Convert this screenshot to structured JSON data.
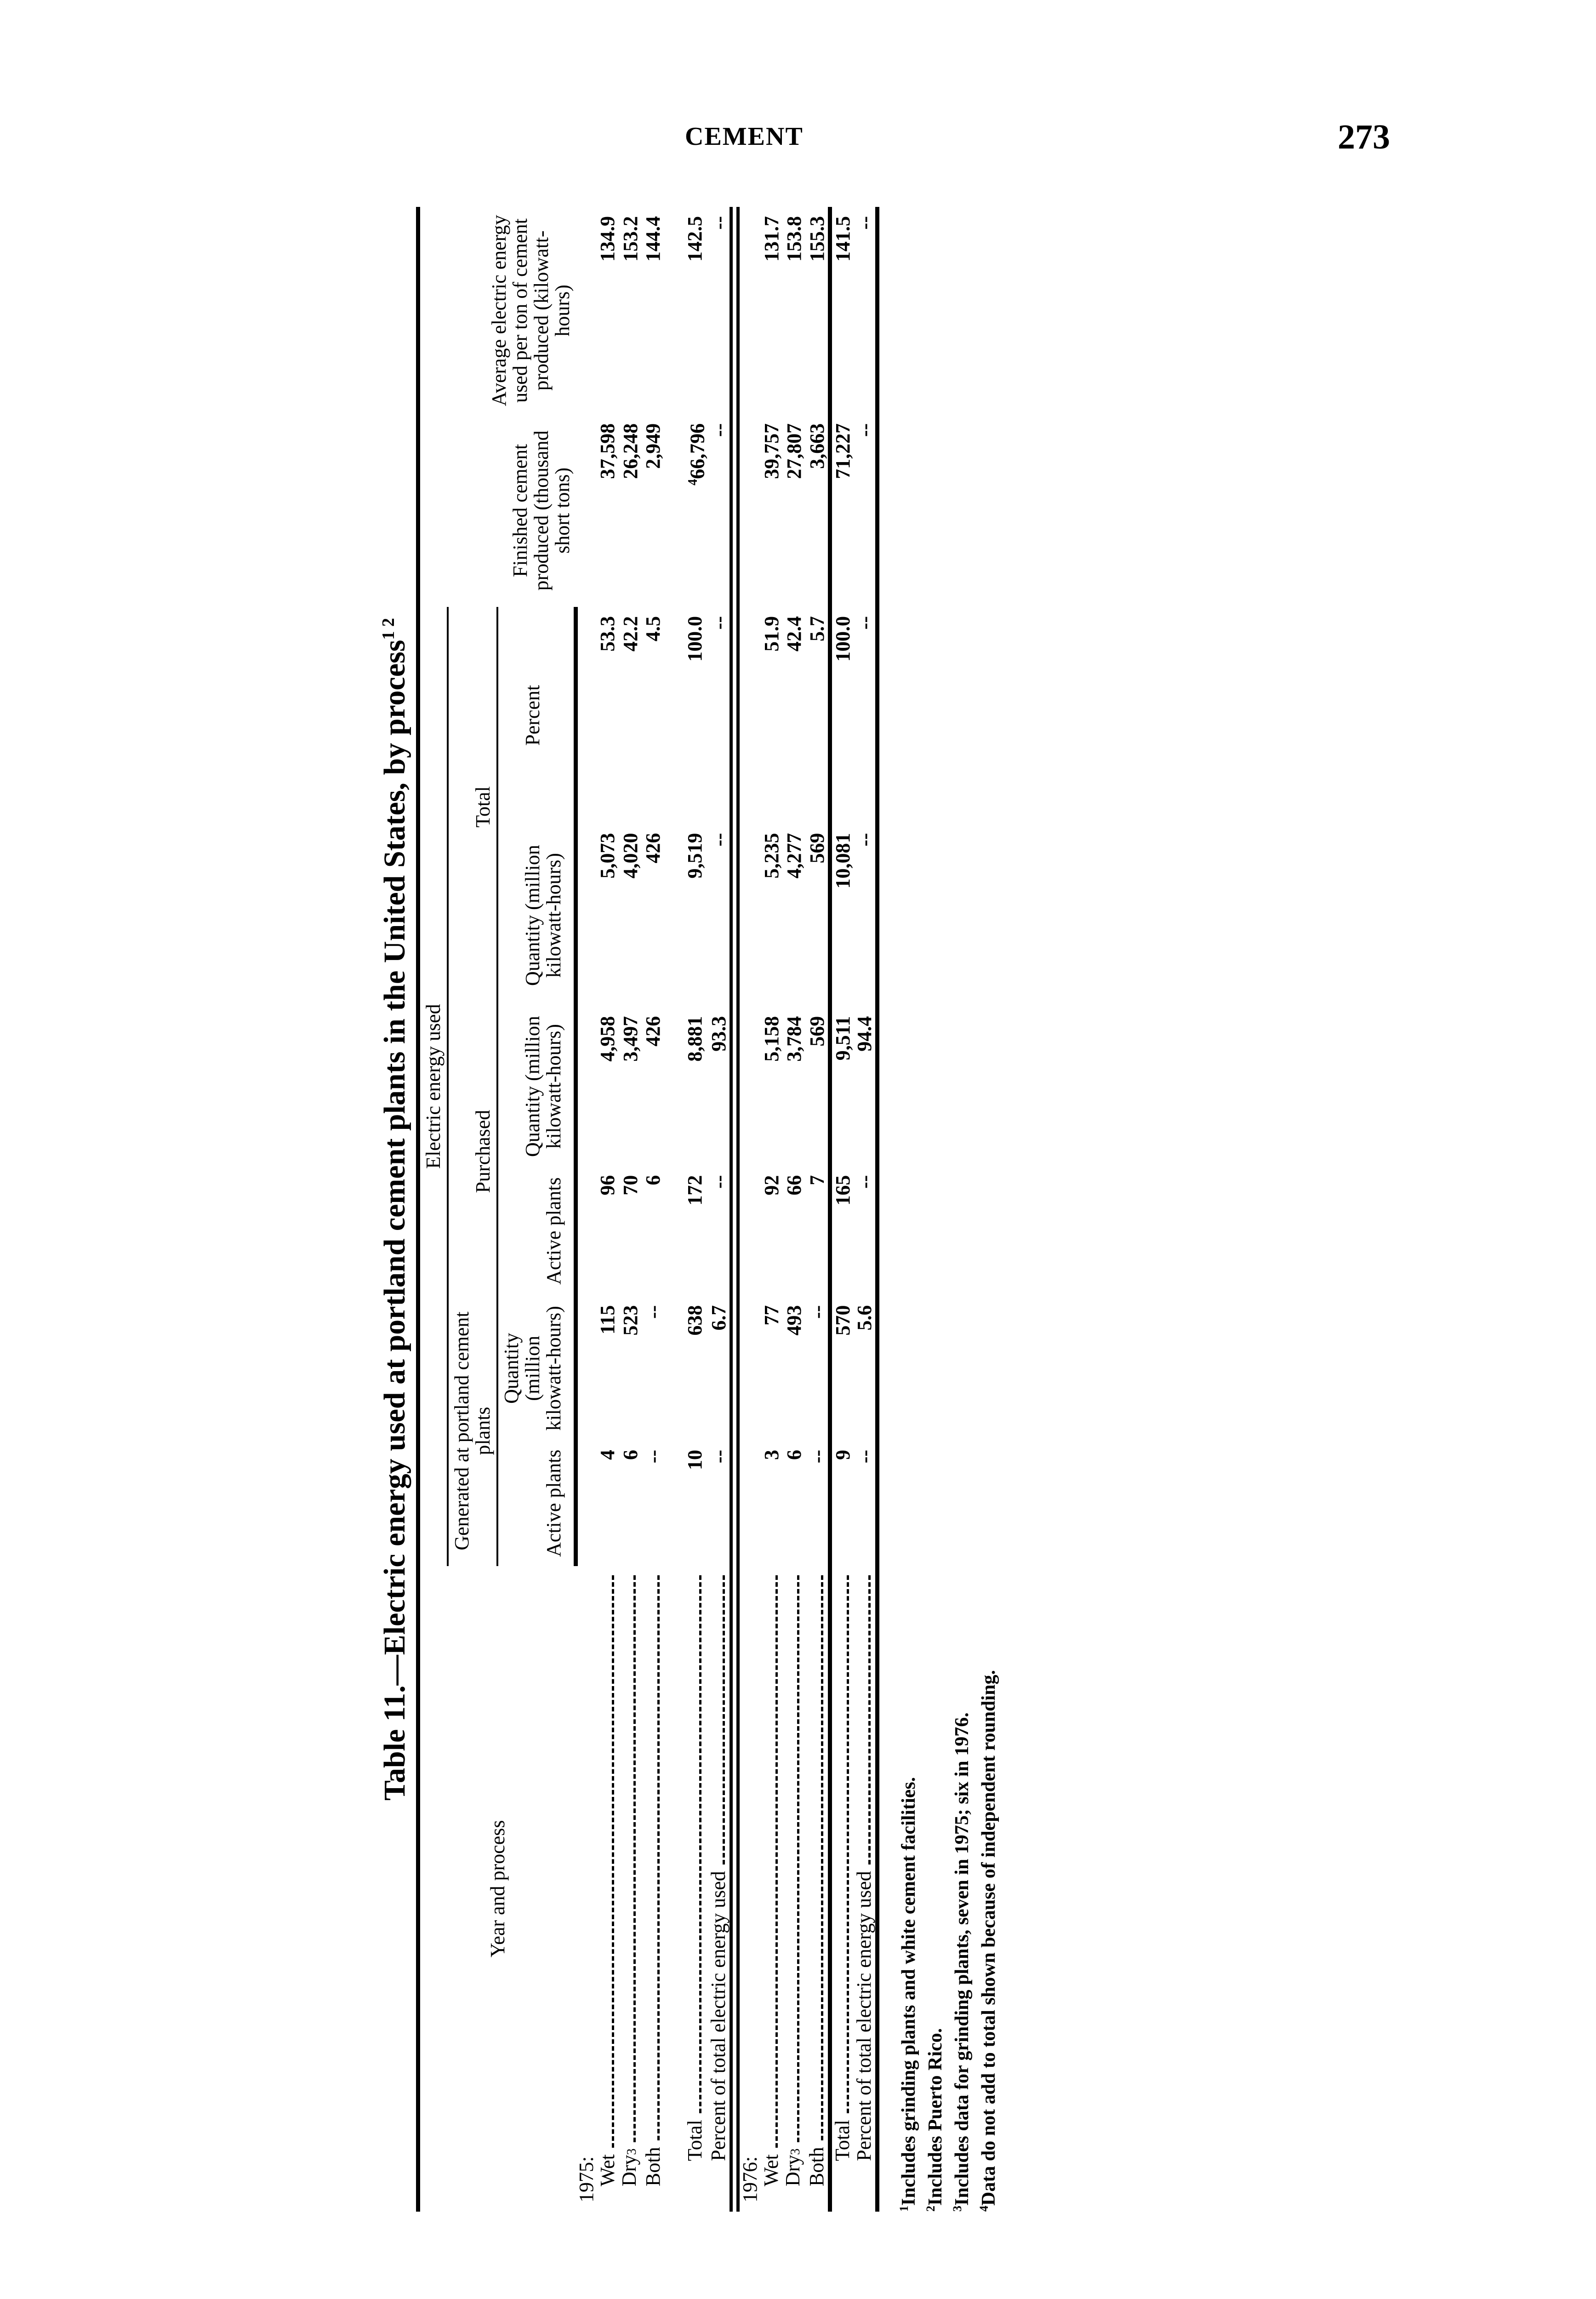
{
  "header": {
    "running_head": "CEMENT",
    "page_number": "273"
  },
  "table": {
    "title": "Table 11.—Electric energy used at portland cement plants in the United States, by process",
    "title_refs": "1 2",
    "headers": {
      "stub": "Year and process",
      "electric": "Electric energy used",
      "generated": "Generated at portland cement plants",
      "purchased": "Purchased",
      "total": "Total",
      "active_plants": "Active plants",
      "quantity": "Quantity (million kilowatt-hours)",
      "percent": "Percent",
      "finished": "Finished cement produced (thousand short tons)",
      "average": "Average electric energy used per ton of cement produced (kilowatt-hours)"
    },
    "sections": [
      {
        "year": "1975:",
        "rows": [
          {
            "label": "Wet",
            "ref": "",
            "v": [
              "4",
              "115",
              "96",
              "4,958",
              "5,073",
              "53.3",
              "37,598",
              "134.9"
            ]
          },
          {
            "label": "Dry",
            "ref": "3",
            "v": [
              "6",
              "523",
              "70",
              "3,497",
              "4,020",
              "42.2",
              "26,248",
              "153.2"
            ]
          },
          {
            "label": "Both",
            "ref": "",
            "v": [
              "--",
              "--",
              "6",
              "426",
              "426",
              "4.5",
              "2,949",
              "144.4"
            ]
          }
        ],
        "total": {
          "label": "Total",
          "v": [
            "10",
            "638",
            "172",
            "8,881",
            "9,519",
            "100.0",
            "66,796",
            "142.5"
          ],
          "finished_ref": "4"
        },
        "percent": {
          "label": "Percent of total electric energy used",
          "v": [
            "--",
            "6.7",
            "--",
            "93.3",
            "--",
            "--",
            "--",
            "--"
          ]
        }
      },
      {
        "year": "1976:",
        "rows": [
          {
            "label": "Wet",
            "ref": "",
            "v": [
              "3",
              "77",
              "92",
              "5,158",
              "5,235",
              "51.9",
              "39,757",
              "131.7"
            ]
          },
          {
            "label": "Dry",
            "ref": "3",
            "v": [
              "6",
              "493",
              "66",
              "3,784",
              "4,277",
              "42.4",
              "27,807",
              "153.8"
            ]
          },
          {
            "label": "Both",
            "ref": "",
            "v": [
              "--",
              "--",
              "7",
              "569",
              "569",
              "5.7",
              "3,663",
              "155.3"
            ]
          }
        ],
        "total": {
          "label": "Total",
          "v": [
            "9",
            "570",
            "165",
            "9,511",
            "10,081",
            "100.0",
            "71,227",
            "141.5"
          ],
          "finished_ref": ""
        },
        "percent": {
          "label": "Percent of total electric energy used",
          "v": [
            "--",
            "5.6",
            "--",
            "94.4",
            "--",
            "--",
            "--",
            "--"
          ]
        }
      }
    ],
    "footnotes": [
      {
        "ref": "1",
        "text": "Includes grinding plants and white cement facilities."
      },
      {
        "ref": "2",
        "text": "Includes Puerto Rico."
      },
      {
        "ref": "3",
        "text": "Includes data for grinding plants, seven in 1975; six in 1976."
      },
      {
        "ref": "4",
        "text": "Data do not add to total shown because of independent rounding."
      }
    ]
  }
}
